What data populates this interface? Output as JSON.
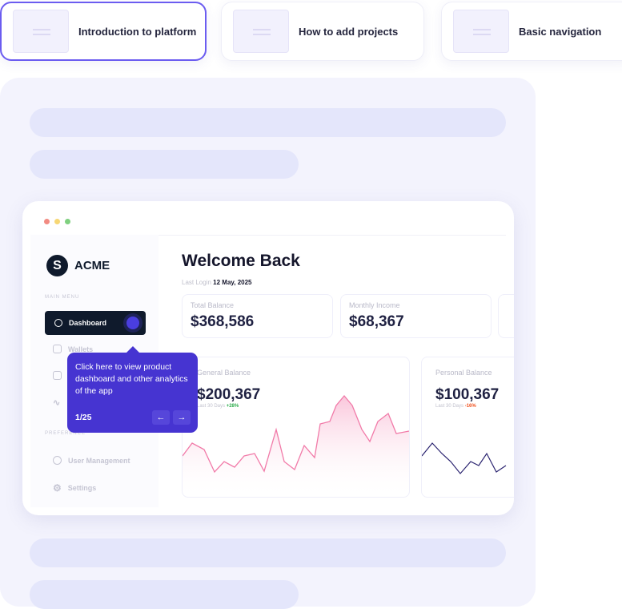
{
  "tabs": [
    {
      "label": "Introduction to platform",
      "active": true
    },
    {
      "label": "How to add projects",
      "active": false
    },
    {
      "label": "Basic navigation",
      "active": false
    }
  ],
  "app": {
    "brand": "ACME",
    "logo_letter": "S",
    "sidebar": {
      "main_menu_label": "MAIN MENU",
      "preference_label": "PREFERENCE",
      "items": [
        {
          "label": "Dashboard",
          "icon": "gauge-icon",
          "active": true
        },
        {
          "label": "Wallets",
          "icon": "wallet-icon"
        },
        {
          "label": "",
          "icon": "message-icon"
        },
        {
          "label": "",
          "icon": "activity-icon"
        }
      ],
      "pref_items": [
        {
          "label": "User Management",
          "icon": "user-icon"
        },
        {
          "label": "Settings",
          "icon": "gear-icon"
        }
      ]
    },
    "header": {
      "title": "Welcome Back",
      "last_login_label": "Last Login",
      "last_login_date": "12 May, 2025"
    },
    "stats": [
      {
        "label": "Total Balance",
        "value": "$368,586"
      },
      {
        "label": "Monthly Income",
        "value": "$68,367"
      }
    ],
    "general": {
      "label": "General Balance",
      "value": "$200,367",
      "period": "Last 30 Days",
      "change": "+28%",
      "change_color": "#2fae4e",
      "line_color": "#f17aa8"
    },
    "personal": {
      "label": "Personal Balance",
      "value": "$100,367",
      "period": "Last 30 Days",
      "change": "-16%",
      "change_color": "#f0521f",
      "line_color": "#2b2470"
    }
  },
  "tooltip": {
    "text": "Click here to view product dashboard and other analytics of the app",
    "step": "1/25",
    "prev_icon": "arrow-left-icon",
    "next_icon": "arrow-right-icon",
    "accent": "#4634d1"
  }
}
